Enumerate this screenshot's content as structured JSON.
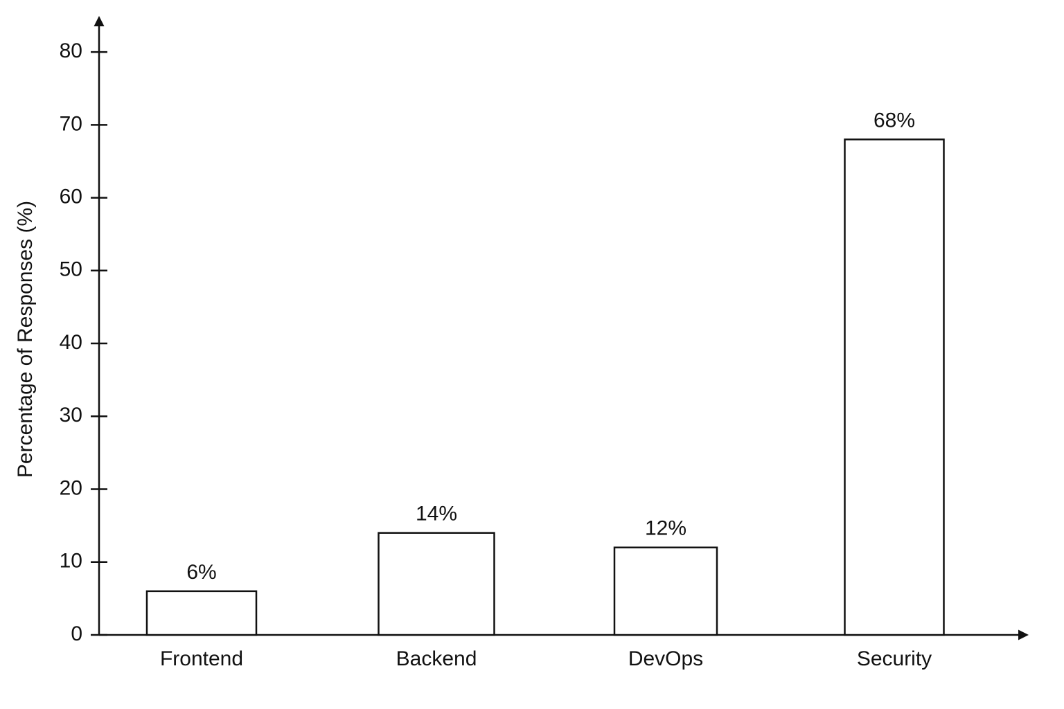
{
  "chart_data": {
    "type": "bar",
    "y_label": "Percentage of Responses (%)",
    "categories": [
      "Frontend",
      "Backend",
      "DevOps",
      "Security"
    ],
    "values": [
      6,
      14,
      12,
      68
    ],
    "value_labels": [
      "6%",
      "14%",
      "12%",
      "68%"
    ],
    "color": "#ffffff",
    "ylim": [
      0,
      84
    ],
    "yticks": [
      0,
      10,
      20,
      30,
      40,
      50,
      60,
      70,
      80
    ],
    "grid": false
  }
}
